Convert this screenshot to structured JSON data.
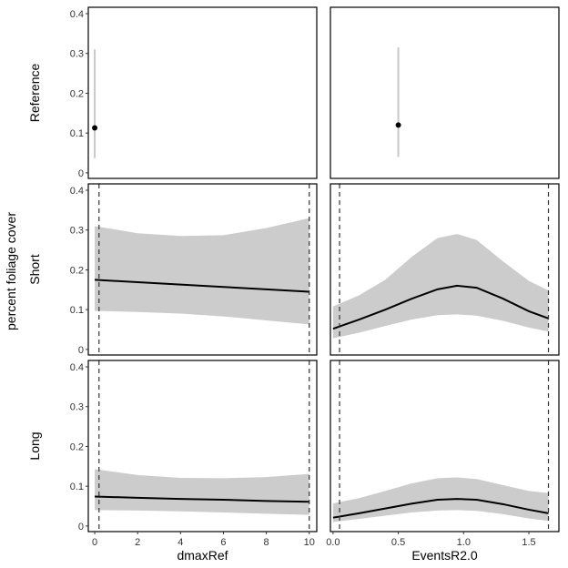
{
  "chart_data": {
    "type": "line",
    "ylabel": "percent foliage cover",
    "rows": [
      "Reference",
      "Short",
      "Long"
    ],
    "columns": [
      {
        "xlabel": "dmaxRef",
        "xlim": [
          -0.3,
          10.35
        ],
        "xticks": [
          0,
          2,
          4,
          6,
          8,
          10
        ],
        "xtick_labels": [
          "0",
          "2",
          "4",
          "6",
          "8",
          "10"
        ],
        "vlines": [
          0.2,
          10
        ]
      },
      {
        "xlabel": "EventsR2.0",
        "xlim": [
          -0.02,
          1.73
        ],
        "xticks": [
          0,
          0.5,
          1.0,
          1.5
        ],
        "xtick_labels": [
          "0.0",
          "0.5",
          "1.0",
          "1.5"
        ],
        "vlines": [
          0.05,
          1.65
        ]
      }
    ],
    "ylim": [
      -0.014,
      0.416
    ],
    "yticks": [
      0,
      0.1,
      0.2,
      0.3,
      0.4
    ],
    "ytick_labels": [
      "0",
      "0.1",
      "0.2",
      "0.3",
      "0.4"
    ],
    "panels": [
      {
        "row": 0,
        "col": 0,
        "kind": "point",
        "x": 0,
        "y": 0.113,
        "lower": 0.037,
        "upper": 0.31
      },
      {
        "row": 0,
        "col": 1,
        "kind": "point",
        "x": 0.5,
        "y": 0.12,
        "lower": 0.04,
        "upper": 0.315
      },
      {
        "row": 1,
        "col": 0,
        "kind": "smooth",
        "x": [
          0,
          2,
          4,
          6,
          8,
          10
        ],
        "y": [
          0.175,
          0.169,
          0.163,
          0.157,
          0.151,
          0.145
        ],
        "lower": [
          0.097,
          0.094,
          0.09,
          0.083,
          0.073,
          0.063
        ],
        "upper": [
          0.31,
          0.292,
          0.285,
          0.287,
          0.305,
          0.33
        ]
      },
      {
        "row": 1,
        "col": 1,
        "kind": "smooth",
        "x": [
          0,
          0.2,
          0.4,
          0.6,
          0.8,
          0.95,
          1.1,
          1.3,
          1.5,
          1.65
        ],
        "y": [
          0.052,
          0.075,
          0.1,
          0.127,
          0.151,
          0.16,
          0.155,
          0.128,
          0.096,
          0.078
        ],
        "lower": [
          0.028,
          0.042,
          0.059,
          0.075,
          0.086,
          0.088,
          0.085,
          0.072,
          0.055,
          0.045
        ],
        "upper": [
          0.108,
          0.136,
          0.175,
          0.232,
          0.28,
          0.29,
          0.275,
          0.222,
          0.172,
          0.148
        ]
      },
      {
        "row": 2,
        "col": 0,
        "kind": "smooth",
        "x": [
          0,
          2,
          4,
          6,
          8,
          10
        ],
        "y": [
          0.074,
          0.071,
          0.068,
          0.066,
          0.063,
          0.061
        ],
        "lower": [
          0.04,
          0.039,
          0.037,
          0.034,
          0.031,
          0.028
        ],
        "upper": [
          0.143,
          0.128,
          0.121,
          0.12,
          0.123,
          0.131
        ]
      },
      {
        "row": 2,
        "col": 1,
        "kind": "smooth",
        "x": [
          0,
          0.2,
          0.4,
          0.6,
          0.8,
          0.95,
          1.1,
          1.3,
          1.5,
          1.65
        ],
        "y": [
          0.021,
          0.032,
          0.044,
          0.056,
          0.066,
          0.068,
          0.066,
          0.055,
          0.041,
          0.032
        ],
        "lower": [
          0.01,
          0.018,
          0.026,
          0.034,
          0.039,
          0.04,
          0.038,
          0.03,
          0.019,
          0.013
        ],
        "upper": [
          0.057,
          0.07,
          0.088,
          0.107,
          0.12,
          0.122,
          0.118,
          0.103,
          0.088,
          0.083
        ]
      }
    ]
  }
}
